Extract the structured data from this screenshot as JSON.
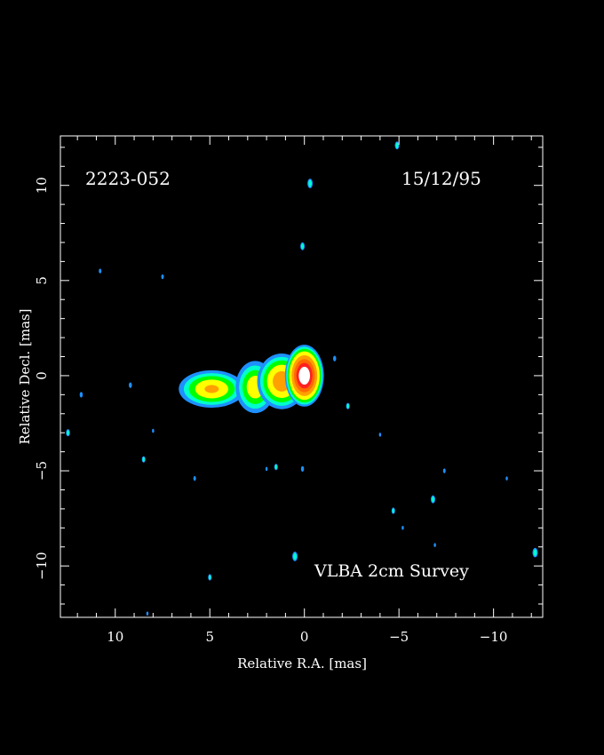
{
  "chart_data": {
    "type": "heatmap",
    "source_name": "2223-052",
    "date": "15/12/95",
    "survey_label": "VLBA 2cm Survey",
    "xlabel": "Relative R.A. [mas]",
    "ylabel": "Relative Decl. [mas]",
    "xlim": [
      12.9,
      -12.6
    ],
    "ylim": [
      -12.7,
      12.6
    ],
    "x_ticks": [
      10,
      5,
      0,
      -5,
      -10
    ],
    "x_tick_labels": [
      "10",
      "5",
      "0",
      "−5",
      "−10"
    ],
    "y_ticks": [
      10,
      5,
      0,
      -5,
      -10
    ],
    "y_tick_labels": [
      "10",
      "5",
      "0",
      "−5",
      "−10"
    ],
    "background": "#000000",
    "colormap": [
      "#1e90ff",
      "#00ffcc",
      "#00ff00",
      "#ffff00",
      "#ffa000",
      "#ff6a00",
      "#ff2020",
      "#ffffff"
    ],
    "components": [
      {
        "name": "core",
        "x": 0.0,
        "y": 0.0,
        "peak": 1.0
      },
      {
        "name": "jet-inner",
        "x": 1.2,
        "y": -0.3,
        "peak": 0.55
      },
      {
        "name": "jet-mid",
        "x": 2.6,
        "y": -0.6,
        "peak": 0.4
      },
      {
        "name": "jet-outer",
        "x": 4.9,
        "y": -0.7,
        "peak": 0.45
      }
    ],
    "noise_blobs": [
      {
        "x": -0.3,
        "y": 10.1,
        "peak": 0.12
      },
      {
        "x": 0.1,
        "y": 6.8,
        "peak": 0.1
      },
      {
        "x": -4.9,
        "y": 12.1,
        "peak": 0.1
      },
      {
        "x": 0.5,
        "y": -9.5,
        "peak": 0.12
      },
      {
        "x": -6.8,
        "y": -6.5,
        "peak": 0.1
      },
      {
        "x": -12.2,
        "y": -9.3,
        "peak": 0.12
      },
      {
        "x": 5.0,
        "y": -10.6,
        "peak": 0.08
      },
      {
        "x": 1.5,
        "y": -4.8,
        "peak": 0.08
      },
      {
        "x": -4.7,
        "y": -7.1,
        "peak": 0.08
      },
      {
        "x": 12.5,
        "y": -3.0,
        "peak": 0.09
      },
      {
        "x": 8.5,
        "y": -4.4,
        "peak": 0.08
      },
      {
        "x": -2.3,
        "y": -1.6,
        "peak": 0.08
      },
      {
        "x": 11.8,
        "y": -1.0,
        "peak": 0.07
      },
      {
        "x": 9.2,
        "y": -0.5,
        "peak": 0.07
      },
      {
        "x": -1.6,
        "y": 0.9,
        "peak": 0.07
      },
      {
        "x": -7.4,
        "y": -5.0,
        "peak": 0.06
      },
      {
        "x": 0.1,
        "y": -4.9,
        "peak": 0.07
      },
      {
        "x": 5.8,
        "y": -5.4,
        "peak": 0.06
      },
      {
        "x": 7.5,
        "y": 5.2,
        "peak": 0.06
      },
      {
        "x": 10.8,
        "y": 5.5,
        "peak": 0.06
      },
      {
        "x": -6.9,
        "y": -8.9,
        "peak": 0.05
      },
      {
        "x": -5.2,
        "y": -8.0,
        "peak": 0.05
      },
      {
        "x": 2.0,
        "y": -4.9,
        "peak": 0.05
      },
      {
        "x": 8.3,
        "y": -12.5,
        "peak": 0.05
      },
      {
        "x": -10.7,
        "y": -5.4,
        "peak": 0.05
      },
      {
        "x": -4.0,
        "y": -3.1,
        "peak": 0.05
      },
      {
        "x": 8.0,
        "y": -2.9,
        "peak": 0.05
      }
    ]
  }
}
